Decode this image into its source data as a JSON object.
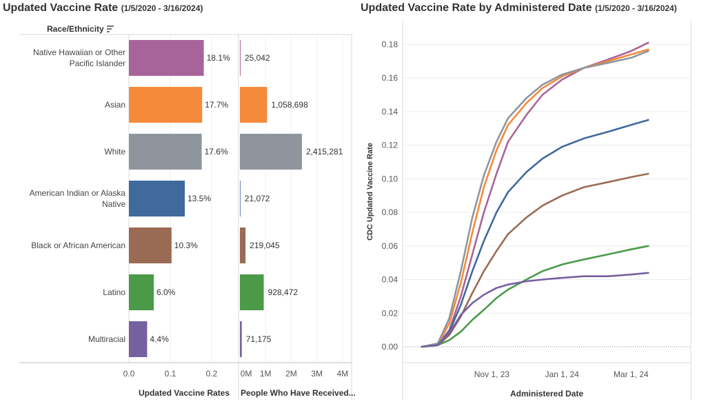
{
  "left_panel": {
    "title_main": "Updated Vaccine Rate",
    "title_sub": "(1/5/2020 - 3/16/2024)",
    "header_label": "Race/Ethnicity",
    "rate_axis_label": "Updated Vaccine Rates",
    "count_axis_label": "People Who Have Received..."
  },
  "right_panel": {
    "title_main": "Updated Vaccine Rate by Administered Date",
    "title_sub": "(1/5/2020 - 3/16/2024)"
  },
  "colors": {
    "nhpi": "#a8649a",
    "asian": "#f58a3a",
    "white": "#8e959d",
    "aian": "#40699c",
    "black": "#9a6b54",
    "latino": "#4a9a48",
    "multiracial": "#7560a0"
  },
  "chart_data": [
    {
      "type": "bar",
      "orientation": "horizontal",
      "categories": [
        "Native Hawaiian or Other Pacific Islander",
        "Asian",
        "White",
        "American Indian or Alaska Native",
        "Black or African American",
        "Latino",
        "Multiracial"
      ],
      "values": [
        0.181,
        0.177,
        0.176,
        0.135,
        0.103,
        0.06,
        0.044
      ],
      "data_labels": [
        "18.1%",
        "17.7%",
        "17.6%",
        "13.5%",
        "10.3%",
        "6.0%",
        "4.4%"
      ],
      "xlabel": "Updated Vaccine Rates",
      "xlim": [
        0,
        0.26
      ],
      "xticks": [
        "0.0",
        "0.1",
        "0.2"
      ],
      "ylabel": "Race/Ethnicity"
    },
    {
      "type": "bar",
      "orientation": "horizontal",
      "categories": [
        "Native Hawaiian or Other Pacific Islander",
        "Asian",
        "White",
        "American Indian or Alaska Native",
        "Black or African American",
        "Latino",
        "Multiracial"
      ],
      "values": [
        25042,
        1058698,
        2415281,
        21072,
        219045,
        928472,
        71175
      ],
      "data_labels": [
        "25,042",
        "1,058,698",
        "2,415,281",
        "21,072",
        "219,045",
        "928,472",
        "71,175"
      ],
      "xlabel": "People Who Have Received...",
      "xlim": [
        0,
        4300000
      ],
      "xticks": [
        "0M",
        "1M",
        "2M",
        "3M",
        "4M"
      ]
    },
    {
      "type": "line",
      "xlabel": "Administered Date",
      "ylabel": "CDC Updated Vaccine Rate",
      "xticks": [
        "Nov 1, 23",
        "Jan 1, 24",
        "Mar 1, 24"
      ],
      "yticks": [
        "0.00",
        "0.02",
        "0.04",
        "0.06",
        "0.08",
        "0.10",
        "0.12",
        "0.14",
        "0.16",
        "0.18"
      ],
      "ylim": [
        0,
        0.19
      ],
      "series": [
        {
          "key": "nhpi",
          "points": [
            [
              "2023-09-01",
              0
            ],
            [
              "2023-09-15",
              0.001
            ],
            [
              "2023-09-25",
              0.01
            ],
            [
              "2023-10-05",
              0.03
            ],
            [
              "2023-10-15",
              0.055
            ],
            [
              "2023-10-25",
              0.08
            ],
            [
              "2023-11-05",
              0.103
            ],
            [
              "2023-11-15",
              0.122
            ],
            [
              "2023-12-01",
              0.138
            ],
            [
              "2023-12-15",
              0.15
            ],
            [
              "2024-01-01",
              0.159
            ],
            [
              "2024-01-20",
              0.166
            ],
            [
              "2024-02-10",
              0.171
            ],
            [
              "2024-03-01",
              0.176
            ],
            [
              "2024-03-16",
              0.181
            ]
          ]
        },
        {
          "key": "asian",
          "points": [
            [
              "2023-09-01",
              0
            ],
            [
              "2023-09-15",
              0.001
            ],
            [
              "2023-09-25",
              0.014
            ],
            [
              "2023-10-05",
              0.038
            ],
            [
              "2023-10-15",
              0.068
            ],
            [
              "2023-10-25",
              0.095
            ],
            [
              "2023-11-05",
              0.117
            ],
            [
              "2023-11-15",
              0.132
            ],
            [
              "2023-12-01",
              0.145
            ],
            [
              "2023-12-15",
              0.154
            ],
            [
              "2024-01-01",
              0.161
            ],
            [
              "2024-01-20",
              0.166
            ],
            [
              "2024-02-10",
              0.17
            ],
            [
              "2024-03-01",
              0.174
            ],
            [
              "2024-03-16",
              0.177
            ]
          ]
        },
        {
          "key": "white",
          "points": [
            [
              "2023-09-01",
              0
            ],
            [
              "2023-09-15",
              0.002
            ],
            [
              "2023-09-25",
              0.017
            ],
            [
              "2023-10-05",
              0.045
            ],
            [
              "2023-10-15",
              0.077
            ],
            [
              "2023-10-25",
              0.102
            ],
            [
              "2023-11-05",
              0.122
            ],
            [
              "2023-11-15",
              0.136
            ],
            [
              "2023-12-01",
              0.148
            ],
            [
              "2023-12-15",
              0.156
            ],
            [
              "2024-01-01",
              0.162
            ],
            [
              "2024-01-20",
              0.166
            ],
            [
              "2024-02-10",
              0.169
            ],
            [
              "2024-03-01",
              0.172
            ],
            [
              "2024-03-16",
              0.176
            ]
          ]
        },
        {
          "key": "aian",
          "points": [
            [
              "2023-09-01",
              0
            ],
            [
              "2023-09-15",
              0.001
            ],
            [
              "2023-09-25",
              0.009
            ],
            [
              "2023-10-05",
              0.025
            ],
            [
              "2023-10-15",
              0.045
            ],
            [
              "2023-10-25",
              0.063
            ],
            [
              "2023-11-05",
              0.08
            ],
            [
              "2023-11-15",
              0.092
            ],
            [
              "2023-12-01",
              0.104
            ],
            [
              "2023-12-15",
              0.112
            ],
            [
              "2024-01-01",
              0.119
            ],
            [
              "2024-01-20",
              0.124
            ],
            [
              "2024-02-10",
              0.128
            ],
            [
              "2024-03-01",
              0.132
            ],
            [
              "2024-03-16",
              0.135
            ]
          ]
        },
        {
          "key": "black",
          "points": [
            [
              "2023-09-01",
              0
            ],
            [
              "2023-09-15",
              0.001
            ],
            [
              "2023-09-25",
              0.007
            ],
            [
              "2023-10-05",
              0.018
            ],
            [
              "2023-10-15",
              0.032
            ],
            [
              "2023-10-25",
              0.045
            ],
            [
              "2023-11-05",
              0.057
            ],
            [
              "2023-11-15",
              0.067
            ],
            [
              "2023-12-01",
              0.077
            ],
            [
              "2023-12-15",
              0.084
            ],
            [
              "2024-01-01",
              0.09
            ],
            [
              "2024-01-20",
              0.095
            ],
            [
              "2024-02-10",
              0.098
            ],
            [
              "2024-03-01",
              0.101
            ],
            [
              "2024-03-16",
              0.103
            ]
          ]
        },
        {
          "key": "latino",
          "points": [
            [
              "2023-09-01",
              0
            ],
            [
              "2023-09-15",
              0.001
            ],
            [
              "2023-09-25",
              0.004
            ],
            [
              "2023-10-05",
              0.009
            ],
            [
              "2023-10-15",
              0.016
            ],
            [
              "2023-10-25",
              0.022
            ],
            [
              "2023-11-05",
              0.029
            ],
            [
              "2023-11-15",
              0.034
            ],
            [
              "2023-12-01",
              0.04
            ],
            [
              "2023-12-15",
              0.045
            ],
            [
              "2024-01-01",
              0.049
            ],
            [
              "2024-01-20",
              0.052
            ],
            [
              "2024-02-10",
              0.055
            ],
            [
              "2024-03-01",
              0.058
            ],
            [
              "2024-03-16",
              0.06
            ]
          ]
        },
        {
          "key": "multiracial",
          "points": [
            [
              "2023-09-01",
              0
            ],
            [
              "2023-09-15",
              0.001
            ],
            [
              "2023-09-25",
              0.008
            ],
            [
              "2023-10-05",
              0.019
            ],
            [
              "2023-10-15",
              0.026
            ],
            [
              "2023-10-25",
              0.031
            ],
            [
              "2023-11-05",
              0.035
            ],
            [
              "2023-11-15",
              0.037
            ],
            [
              "2023-12-01",
              0.039
            ],
            [
              "2023-12-15",
              0.04
            ],
            [
              "2024-01-01",
              0.041
            ],
            [
              "2024-01-20",
              0.042
            ],
            [
              "2024-02-10",
              0.042
            ],
            [
              "2024-03-01",
              0.043
            ],
            [
              "2024-03-16",
              0.044
            ]
          ]
        }
      ]
    }
  ]
}
